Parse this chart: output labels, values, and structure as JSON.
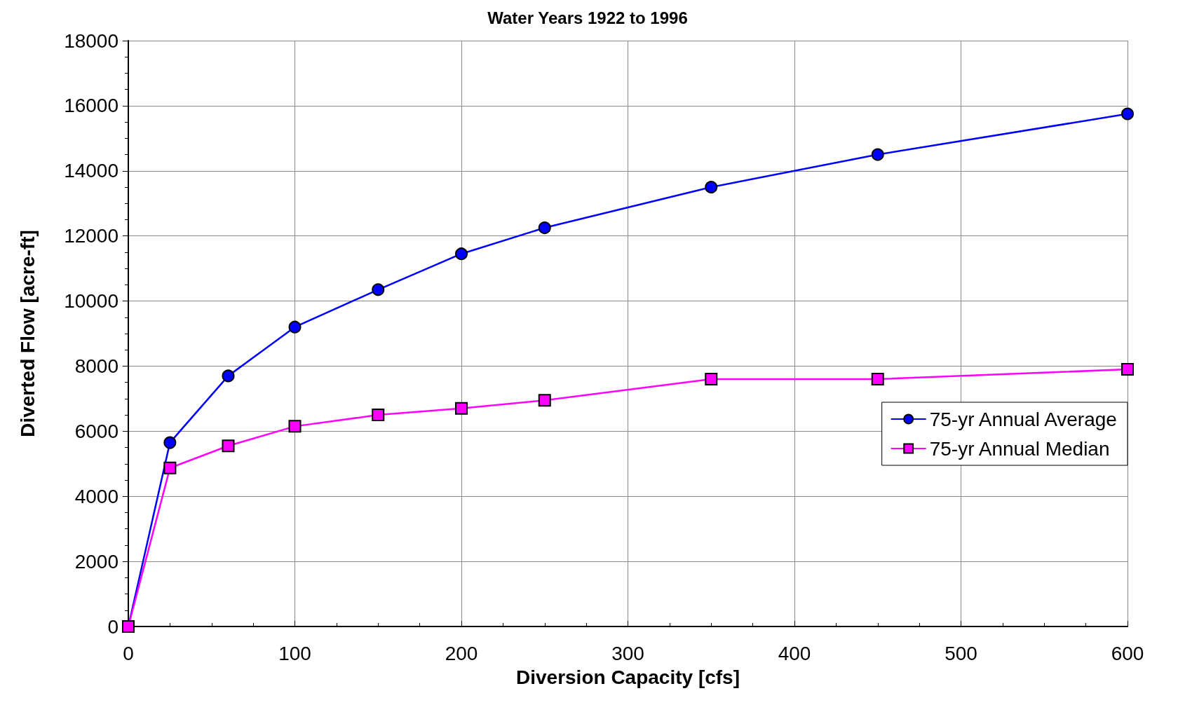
{
  "chart_data": {
    "type": "line",
    "title": "Water Years 1922 to 1996",
    "xlabel": "Diversion Capacity [cfs]",
    "ylabel": "Diverted Flow [acre-ft]",
    "x": [
      0,
      25,
      60,
      100,
      150,
      200,
      250,
      350,
      450,
      600
    ],
    "series": [
      {
        "name": "75-yr Annual Average",
        "color": "#0000ff",
        "marker": "circle",
        "values": [
          0,
          5650,
          7700,
          9200,
          10350,
          11450,
          12250,
          13500,
          14500,
          15750
        ]
      },
      {
        "name": "75-yr Annual Median",
        "color": "#ff00ff",
        "marker": "square",
        "values": [
          0,
          4870,
          5550,
          6150,
          6500,
          6700,
          6950,
          7600,
          7600,
          7900
        ]
      }
    ],
    "xlim": [
      0,
      600
    ],
    "xticks": [
      0,
      100,
      200,
      300,
      400,
      500,
      600
    ],
    "ylim": [
      0,
      18000
    ],
    "yticks": [
      0,
      2000,
      4000,
      6000,
      8000,
      10000,
      12000,
      14000,
      16000,
      18000
    ],
    "grid": true,
    "legend": "bottom right",
    "line_style": "solid"
  }
}
